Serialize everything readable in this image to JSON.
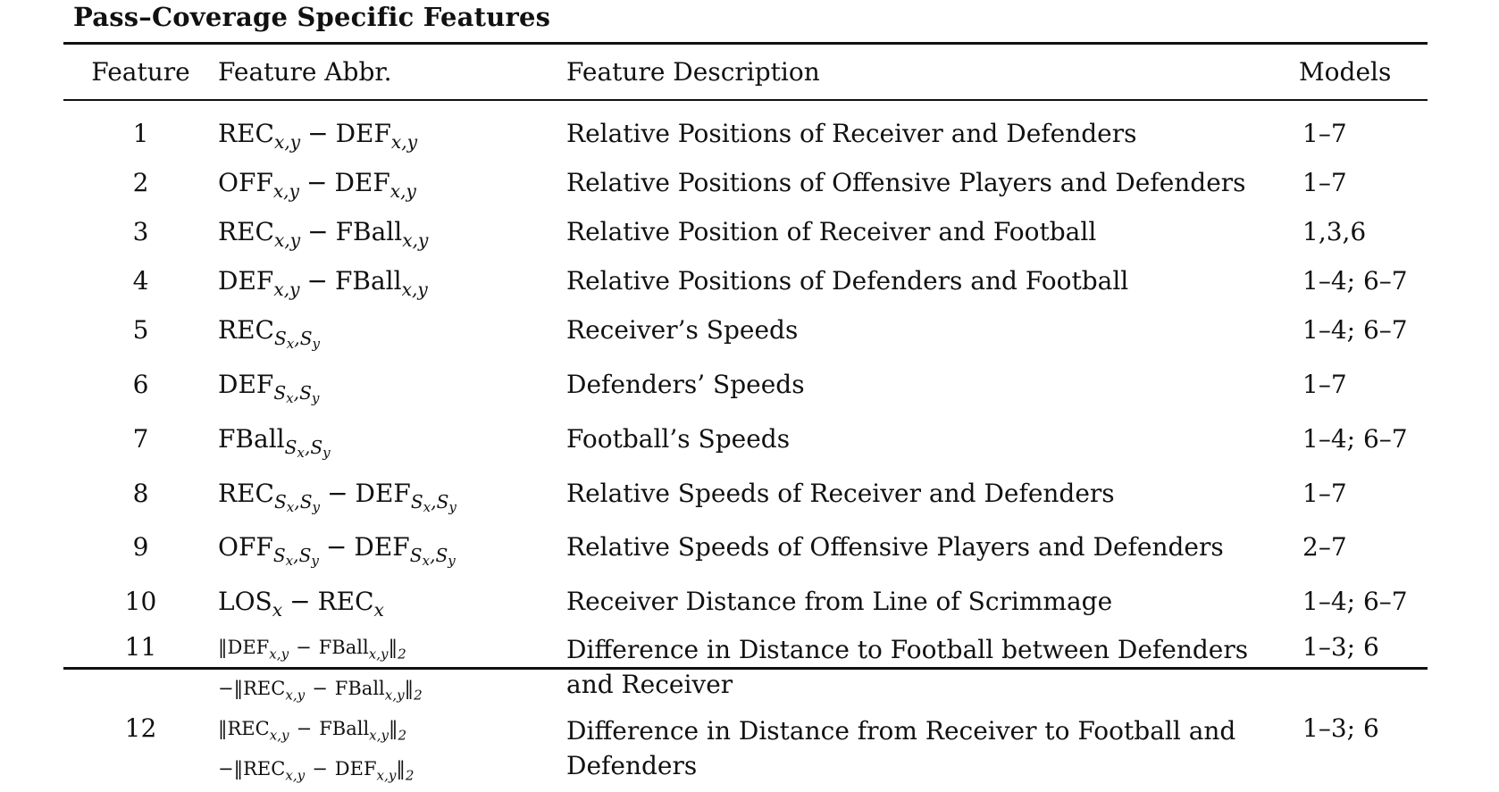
{
  "caption": "Pass–Coverage Specific Features",
  "headers": {
    "feature": "Feature",
    "abbr": "Feature Abbr.",
    "description": "Feature Description",
    "models": "Models"
  },
  "rows": [
    {
      "num": "1",
      "abbr": "REC_{x,y} − DEF_{x,y}",
      "description": "Relative Positions of Receiver and Defenders",
      "models": "1–7"
    },
    {
      "num": "2",
      "abbr": "OFF_{x,y} − DEF_{x,y}",
      "description": "Relative Positions of Offensive Players and Defenders",
      "models": "1–7"
    },
    {
      "num": "3",
      "abbr": "REC_{x,y} − FBall_{x,y}",
      "description": "Relative Position of Receiver and Football",
      "models": "1,3,6"
    },
    {
      "num": "4",
      "abbr": "DEF_{x,y} − FBall_{x,y}",
      "description": "Relative Positions of Defenders and Football",
      "models": "1–4; 6–7"
    },
    {
      "num": "5",
      "abbr": "REC_{S_x,S_y}",
      "description": "Receiver’s Speeds",
      "models": "1–4; 6–7"
    },
    {
      "num": "6",
      "abbr": "DEF_{S_x,S_y}",
      "description": "Defenders’ Speeds",
      "models": "1–7"
    },
    {
      "num": "7",
      "abbr": "FBall_{S_x,S_y}",
      "description": "Football’s Speeds",
      "models": "1–4; 6–7"
    },
    {
      "num": "8",
      "abbr": "REC_{S_x,S_y} − DEF_{S_x,S_y}",
      "description": "Relative Speeds of Receiver and Defenders",
      "models": "1–7"
    },
    {
      "num": "9",
      "abbr": "OFF_{S_x,S_y} − DEF_{S_x,S_y}",
      "description": "Relative Speeds of Offensive Players and Defenders",
      "models": "2–7"
    },
    {
      "num": "10",
      "abbr": "LOS_x − REC_x",
      "description": "Receiver Distance from Line of Scrimmage",
      "models": "1–4; 6–7"
    },
    {
      "num": "11",
      "abbr": "‖DEF_{x,y} − FBall_{x,y}‖_2 −‖REC_{x,y} − FBall_{x,y}‖_2",
      "description": "Difference in Distance to Football between Defenders and Receiver",
      "models": "1–3; 6"
    },
    {
      "num": "12",
      "abbr": "‖REC_{x,y} − FBall_{x,y}‖_2 −‖REC_{x,y} − DEF_{x,y}‖_2",
      "description": "Difference in Distance from Receiver to Football and Defenders",
      "models": "1–3; 6"
    }
  ]
}
